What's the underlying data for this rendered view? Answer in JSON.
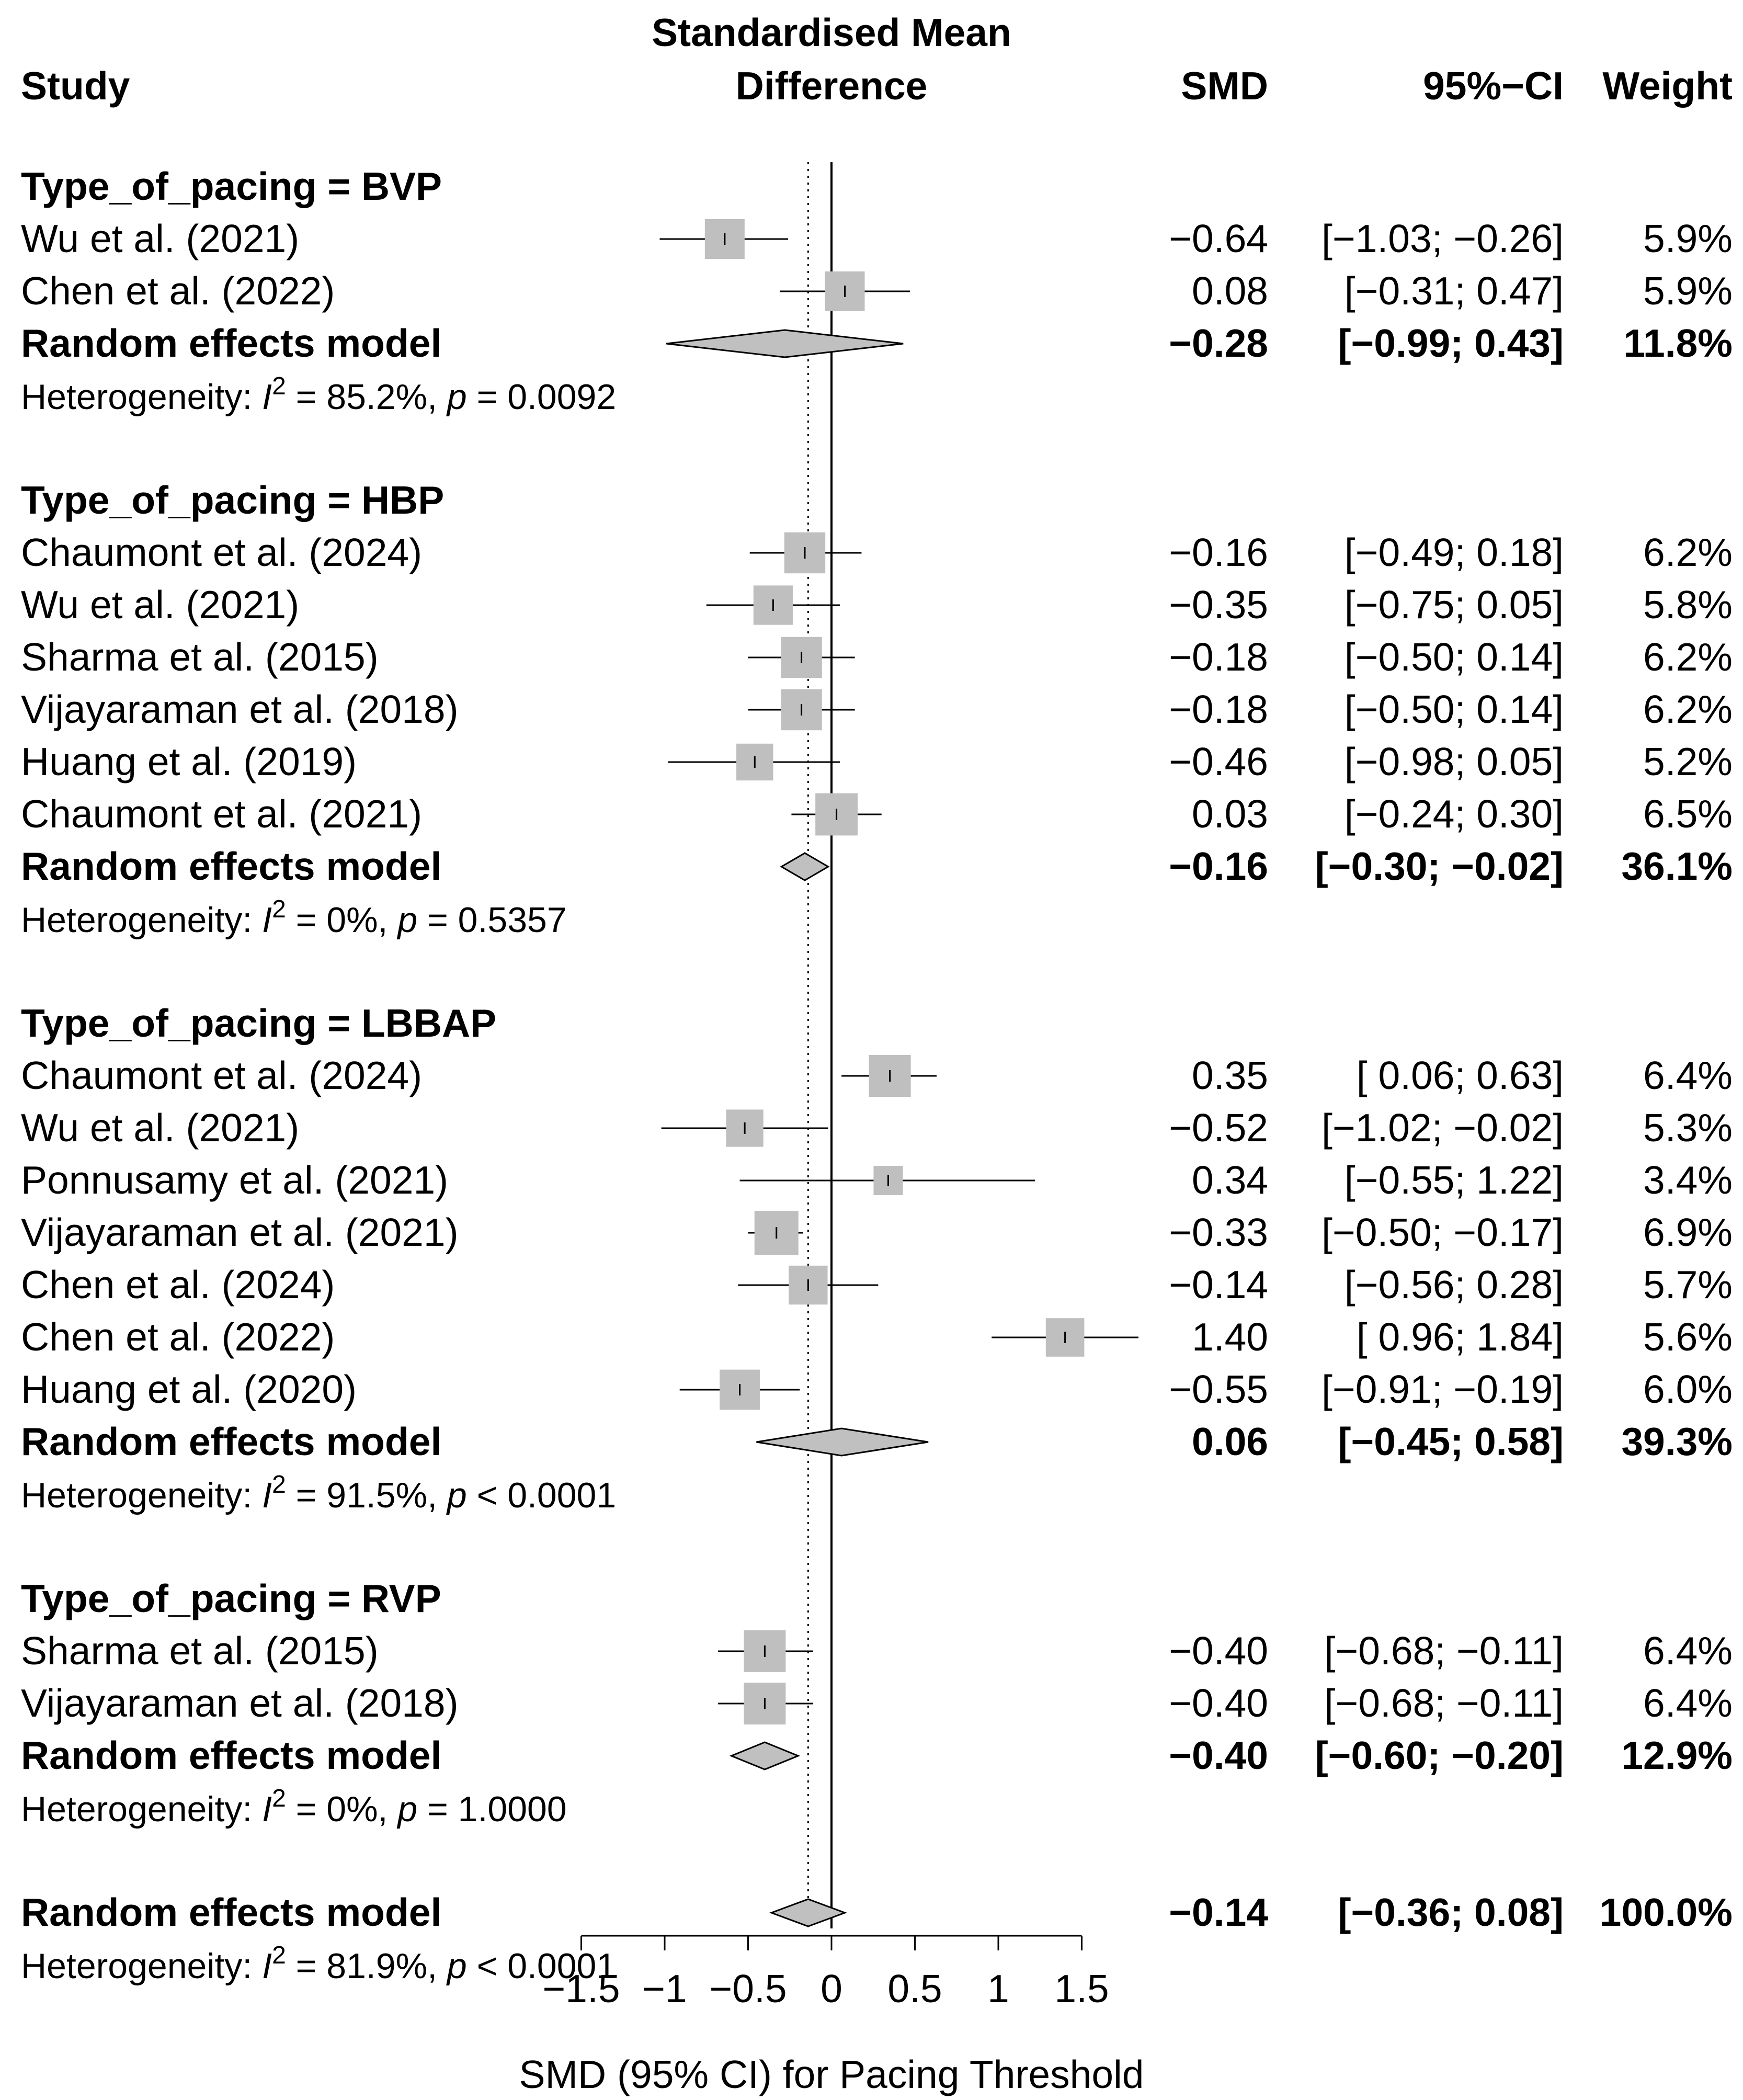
{
  "chart_data": {
    "type": "forest",
    "headers": {
      "study": "Study",
      "plot_line1": "Standardised Mean",
      "plot_line2": "Difference",
      "smd": "SMD",
      "ci": "95%−CI",
      "weight": "Weight"
    },
    "xlabel": "SMD (95% CI) for Pacing Threshold",
    "xlim": [
      -1.5,
      1.5
    ],
    "ticks": [
      {
        "value": -1.5,
        "label": "−1.5"
      },
      {
        "value": -1,
        "label": "−1"
      },
      {
        "value": -0.5,
        "label": "−0.5"
      },
      {
        "value": 0,
        "label": "0"
      },
      {
        "value": 0.5,
        "label": "0.5"
      },
      {
        "value": 1,
        "label": "1"
      },
      {
        "value": 1.5,
        "label": "1.5"
      }
    ],
    "overall_reference": -0.14,
    "subgroups": [
      {
        "title": "Type_of_pacing = BVP",
        "studies": [
          {
            "study": "Wu et al. (2021)",
            "smd": -0.64,
            "lo": -1.03,
            "hi": -0.26,
            "weight": 5.9,
            "smd_text": "−0.64",
            "ci_text": "[−1.03; −0.26]",
            "weight_text": "5.9%"
          },
          {
            "study": "Chen et al. (2022)",
            "smd": 0.08,
            "lo": -0.31,
            "hi": 0.47,
            "weight": 5.9,
            "smd_text": "0.08",
            "ci_text": "[−0.31;  0.47]",
            "weight_text": "5.9%"
          }
        ],
        "model": {
          "label": "Random effects model",
          "smd": -0.28,
          "lo": -0.99,
          "hi": 0.43,
          "smd_text": "−0.28",
          "ci_text": "[−0.99;  0.43]",
          "weight_text": "11.8%"
        },
        "het": {
          "prefix": "Heterogeneity: ",
          "i": "I",
          "sup": "2",
          "mid": " = 85.2%, ",
          "p": "p",
          "suffix": " = 0.0092"
        }
      },
      {
        "title": "Type_of_pacing = HBP",
        "studies": [
          {
            "study": "Chaumont et al. (2024)",
            "smd": -0.16,
            "lo": -0.49,
            "hi": 0.18,
            "weight": 6.2,
            "smd_text": "−0.16",
            "ci_text": "[−0.49;  0.18]",
            "weight_text": "6.2%"
          },
          {
            "study": "Wu et al. (2021)",
            "smd": -0.35,
            "lo": -0.75,
            "hi": 0.05,
            "weight": 5.8,
            "smd_text": "−0.35",
            "ci_text": "[−0.75;  0.05]",
            "weight_text": "5.8%"
          },
          {
            "study": "Sharma et al. (2015)",
            "smd": -0.18,
            "lo": -0.5,
            "hi": 0.14,
            "weight": 6.2,
            "smd_text": "−0.18",
            "ci_text": "[−0.50;  0.14]",
            "weight_text": "6.2%"
          },
          {
            "study": "Vijayaraman et al. (2018)",
            "smd": -0.18,
            "lo": -0.5,
            "hi": 0.14,
            "weight": 6.2,
            "smd_text": "−0.18",
            "ci_text": "[−0.50;  0.14]",
            "weight_text": "6.2%"
          },
          {
            "study": "Huang et al. (2019)",
            "smd": -0.46,
            "lo": -0.98,
            "hi": 0.05,
            "weight": 5.2,
            "smd_text": "−0.46",
            "ci_text": "[−0.98;  0.05]",
            "weight_text": "5.2%"
          },
          {
            "study": "Chaumont et al. (2021)",
            "smd": 0.03,
            "lo": -0.24,
            "hi": 0.3,
            "weight": 6.5,
            "smd_text": "0.03",
            "ci_text": "[−0.24;  0.30]",
            "weight_text": "6.5%"
          }
        ],
        "model": {
          "label": "Random effects model",
          "smd": -0.16,
          "lo": -0.3,
          "hi": -0.02,
          "smd_text": "−0.16",
          "ci_text": "[−0.30; −0.02]",
          "weight_text": "36.1%"
        },
        "het": {
          "prefix": "Heterogeneity: ",
          "i": "I",
          "sup": "2",
          "mid": " = 0%, ",
          "p": "p",
          "suffix": " = 0.5357"
        }
      },
      {
        "title": "Type_of_pacing = LBBAP",
        "studies": [
          {
            "study": "Chaumont et al. (2024)",
            "smd": 0.35,
            "lo": 0.06,
            "hi": 0.63,
            "weight": 6.4,
            "smd_text": "0.35",
            "ci_text": "[ 0.06;  0.63]",
            "weight_text": "6.4%"
          },
          {
            "study": "Wu et al. (2021)",
            "smd": -0.52,
            "lo": -1.02,
            "hi": -0.02,
            "weight": 5.3,
            "smd_text": "−0.52",
            "ci_text": "[−1.02; −0.02]",
            "weight_text": "5.3%"
          },
          {
            "study": "Ponnusamy et al. (2021)",
            "smd": 0.34,
            "lo": -0.55,
            "hi": 1.22,
            "weight": 3.4,
            "smd_text": "0.34",
            "ci_text": "[−0.55;  1.22]",
            "weight_text": "3.4%"
          },
          {
            "study": "Vijayaraman et al. (2021)",
            "smd": -0.33,
            "lo": -0.5,
            "hi": -0.17,
            "weight": 6.9,
            "smd_text": "−0.33",
            "ci_text": "[−0.50; −0.17]",
            "weight_text": "6.9%"
          },
          {
            "study": "Chen et al. (2024)",
            "smd": -0.14,
            "lo": -0.56,
            "hi": 0.28,
            "weight": 5.7,
            "smd_text": "−0.14",
            "ci_text": "[−0.56;  0.28]",
            "weight_text": "5.7%"
          },
          {
            "study": "Chen et al. (2022)",
            "smd": 1.4,
            "lo": 0.96,
            "hi": 1.84,
            "weight": 5.6,
            "smd_text": "1.40",
            "ci_text": "[ 0.96;  1.84]",
            "weight_text": "5.6%"
          },
          {
            "study": "Huang et al. (2020)",
            "smd": -0.55,
            "lo": -0.91,
            "hi": -0.19,
            "weight": 6.0,
            "smd_text": "−0.55",
            "ci_text": "[−0.91; −0.19]",
            "weight_text": "6.0%"
          }
        ],
        "model": {
          "label": "Random effects model",
          "smd": 0.06,
          "lo": -0.45,
          "hi": 0.58,
          "smd_text": "0.06",
          "ci_text": "[−0.45;  0.58]",
          "weight_text": "39.3%"
        },
        "het": {
          "prefix": "Heterogeneity: ",
          "i": "I",
          "sup": "2",
          "mid": " = 91.5%, ",
          "p": "p",
          "suffix": " < 0.0001"
        }
      },
      {
        "title": "Type_of_pacing = RVP",
        "studies": [
          {
            "study": "Sharma et al. (2015)",
            "smd": -0.4,
            "lo": -0.68,
            "hi": -0.11,
            "weight": 6.4,
            "smd_text": "−0.40",
            "ci_text": "[−0.68; −0.11]",
            "weight_text": "6.4%"
          },
          {
            "study": "Vijayaraman et al. (2018)",
            "smd": -0.4,
            "lo": -0.68,
            "hi": -0.11,
            "weight": 6.4,
            "smd_text": "−0.40",
            "ci_text": "[−0.68; −0.11]",
            "weight_text": "6.4%"
          }
        ],
        "model": {
          "label": "Random effects model",
          "smd": -0.4,
          "lo": -0.6,
          "hi": -0.2,
          "smd_text": "−0.40",
          "ci_text": "[−0.60; −0.20]",
          "weight_text": "12.9%"
        },
        "het": {
          "prefix": "Heterogeneity: ",
          "i": "I",
          "sup": "2",
          "mid": " = 0%, ",
          "p": "p",
          "suffix": " = 1.0000"
        }
      }
    ],
    "overall": {
      "label": "Random effects model",
      "smd": -0.14,
      "lo": -0.36,
      "hi": 0.08,
      "smd_text": "−0.14",
      "ci_text": "[−0.36;  0.08]",
      "weight_text": "100.0%",
      "het": {
        "prefix": "Heterogeneity: ",
        "i": "I",
        "sup": "2",
        "mid": " = 81.9%, ",
        "p": "p",
        "suffix": " < 0.0001"
      }
    }
  }
}
